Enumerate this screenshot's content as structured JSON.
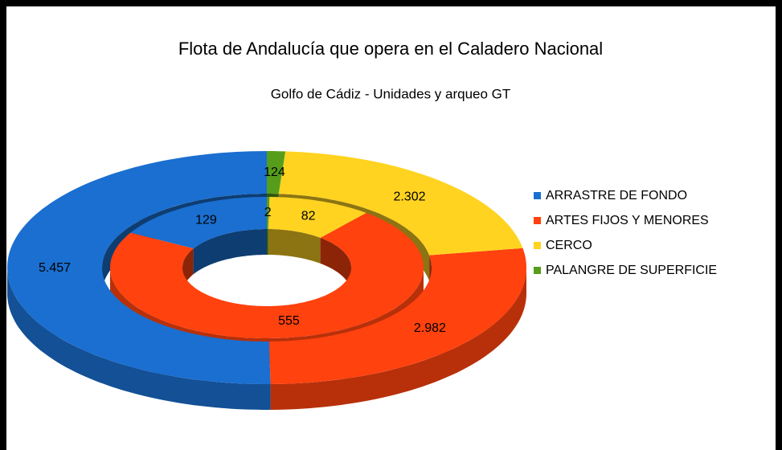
{
  "chart_data": {
    "type": "donut3d",
    "title": "Flota de Andalucía que opera en el Caladero Nacional",
    "subtitle": "Golfo de Cádiz - Unidades y arqueo GT",
    "categories": [
      "ARRASTRE DE FONDO",
      "ARTES FIJOS Y MENORES",
      "CERCO",
      "PALANGRE DE SUPERFICIE"
    ],
    "colors": [
      "#1a6fd0",
      "#ff420e",
      "#ffd320",
      "#579d1c"
    ],
    "series": [
      {
        "values": [
          5457,
          2982,
          2302,
          124
        ],
        "value_labels": [
          "5.457",
          "2.982",
          "2.302",
          "124"
        ]
      },
      {
        "values": [
          129,
          555,
          82,
          2
        ]
      }
    ],
    "legend": "right"
  }
}
